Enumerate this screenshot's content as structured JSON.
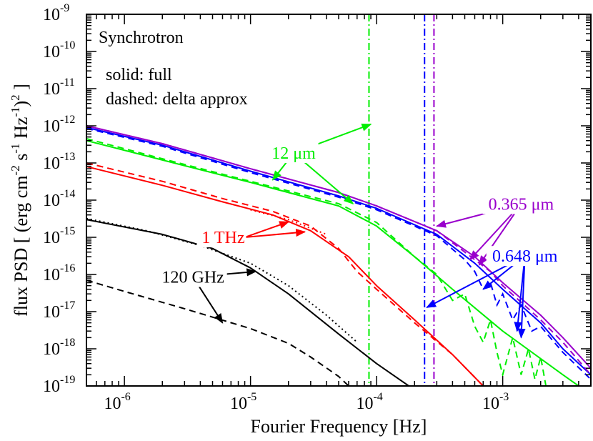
{
  "chart_data": {
    "type": "line",
    "xscale": "log",
    "yscale": "log",
    "xlim": [
      5e-07,
      0.005
    ],
    "ylim": [
      1e-19,
      1e-09
    ],
    "xlabel": "Fourier Frequency [Hz]",
    "ylabel": {
      "prefix": "flux PSD [ (erg cm",
      "exp1": "-2",
      "mid1": " s",
      "exp2": "-1",
      "mid2": " Hz",
      "exp3": "-1",
      "close": ")",
      "exp4": "2",
      "suffix": " ]"
    },
    "xticks": [
      {
        "value": 1e-06,
        "label": "10",
        "exp": "-6"
      },
      {
        "value": 1e-05,
        "label": "10",
        "exp": "-5"
      },
      {
        "value": 0.0001,
        "label": "10",
        "exp": "-4"
      },
      {
        "value": 0.001,
        "label": "10",
        "exp": "-3"
      }
    ],
    "yticks": [
      {
        "value": 1e-19,
        "label": "10",
        "exp": "-19"
      },
      {
        "value": 1e-18,
        "label": "10",
        "exp": "-18"
      },
      {
        "value": 1e-17,
        "label": "10",
        "exp": "-17"
      },
      {
        "value": 1e-16,
        "label": "10",
        "exp": "-16"
      },
      {
        "value": 1e-15,
        "label": "10",
        "exp": "-15"
      },
      {
        "value": 1e-14,
        "label": "10",
        "exp": "-14"
      },
      {
        "value": 1e-13,
        "label": "10",
        "exp": "-13"
      },
      {
        "value": 1e-12,
        "label": "10",
        "exp": "-12"
      },
      {
        "value": 1e-11,
        "label": "10",
        "exp": "-11"
      },
      {
        "value": 1e-10,
        "label": "10",
        "exp": "-10"
      },
      {
        "value": 1e-09,
        "label": "10",
        "exp": "-9"
      }
    ],
    "annotations": {
      "title": "Synchrotron",
      "legend_solid": "solid:  full",
      "legend_dashed": "dashed:  delta approx"
    },
    "series": [
      {
        "name": "120 GHz",
        "color": "#000000",
        "full": [
          [
            5e-07,
            3e-15
          ],
          [
            2e-06,
            1.2e-15
          ],
          [
            5e-06,
            5e-16
          ],
          [
            1e-05,
            1.5e-16
          ],
          [
            2e-05,
            3e-17
          ],
          [
            5e-05,
            2.5e-18
          ],
          [
            0.0001,
            4e-19
          ],
          [
            0.00018,
            1e-19
          ]
        ],
        "delta": [
          [
            5e-07,
            7e-17
          ],
          [
            1e-06,
            3.5e-17
          ],
          [
            3e-06,
            1.2e-17
          ],
          [
            1e-05,
            3.5e-18
          ],
          [
            2e-05,
            1.4e-18
          ],
          [
            3e-05,
            6e-19
          ],
          [
            5e-05,
            1.8e-19
          ],
          [
            6e-05,
            1e-19
          ]
        ],
        "dotted": [
          [
            5e-07,
            3.2e-15
          ],
          [
            1.5e-06,
            1.5e-15
          ],
          [
            4e-06,
            6e-16
          ],
          [
            1e-05,
            2e-16
          ],
          [
            2e-05,
            5e-17
          ],
          [
            4e-05,
            8e-18
          ],
          [
            7e-05,
            1.5e-18
          ]
        ]
      },
      {
        "name": "1 THz",
        "color": "#ff0000",
        "full": [
          [
            5e-07,
            8e-14
          ],
          [
            2e-06,
            2.5e-14
          ],
          [
            6e-06,
            9e-15
          ],
          [
            1.5e-05,
            4e-15
          ],
          [
            3e-05,
            1.5e-15
          ],
          [
            6e-05,
            3e-16
          ],
          [
            0.0001,
            5e-17
          ],
          [
            0.0002,
            6e-18
          ],
          [
            0.0004,
            7e-19
          ],
          [
            0.0007,
            1e-19
          ]
        ],
        "delta": [
          [
            5e-07,
            1e-13
          ],
          [
            2e-06,
            3.2e-14
          ],
          [
            6e-06,
            1.1e-14
          ],
          [
            1.5e-05,
            5e-15
          ],
          [
            3e-05,
            2e-15
          ],
          [
            5e-05,
            5e-16
          ],
          [
            7e-05,
            1.2e-16
          ],
          [
            0.0001,
            4e-17
          ],
          [
            0.0002,
            5e-18
          ],
          [
            0.0004,
            7e-19
          ],
          [
            0.0007,
            1e-19
          ]
        ],
        "dotted": [
          [
            1e-05,
            5.5e-15
          ],
          [
            2e-05,
            3e-15
          ],
          [
            4e-05,
            1.2e-15
          ]
        ]
      },
      {
        "name": "12 μm",
        "color": "#00ee00",
        "full": [
          [
            5e-07,
            4e-13
          ],
          [
            2e-06,
            1.2e-13
          ],
          [
            1e-05,
            3e-14
          ],
          [
            5e-05,
            7e-15
          ],
          [
            0.0001,
            2e-15
          ],
          [
            0.0002,
            3e-16
          ],
          [
            0.0004,
            4e-17
          ],
          [
            0.001,
            3e-18
          ],
          [
            0.003,
            2e-19
          ],
          [
            0.004,
            1e-19
          ]
        ],
        "delta": [
          [
            5e-07,
            4.5e-13
          ],
          [
            2e-06,
            1.3e-13
          ],
          [
            1e-05,
            3.2e-14
          ],
          [
            5e-05,
            8e-15
          ],
          [
            0.0001,
            2.5e-15
          ],
          [
            0.0002,
            3e-16
          ],
          [
            0.0003,
            1e-16
          ],
          [
            0.0004,
            2e-17
          ],
          [
            0.0005,
            3e-17
          ],
          [
            0.0006,
            4e-18
          ],
          [
            0.0007,
            1.5e-18
          ],
          [
            0.0008,
            6e-18
          ],
          [
            0.0009,
            8e-19
          ],
          [
            0.001,
            2e-19
          ],
          [
            0.0012,
            2e-18
          ],
          [
            0.0014,
            2e-19
          ],
          [
            0.0016,
            1e-18
          ],
          [
            0.0018,
            1.5e-19
          ],
          [
            0.002,
            6e-19
          ],
          [
            0.0022,
            1e-19
          ]
        ]
      },
      {
        "name": "0.648 μm",
        "color": "#0000ff",
        "full": [
          [
            5e-07,
            9e-13
          ],
          [
            2e-06,
            3e-13
          ],
          [
            1e-05,
            6e-14
          ],
          [
            5e-05,
            1.3e-14
          ],
          [
            0.0001,
            6e-15
          ],
          [
            0.0003,
            1.2e-15
          ],
          [
            0.0006,
            2e-16
          ],
          [
            0.001,
            4e-17
          ],
          [
            0.002,
            5e-18
          ],
          [
            0.003,
            1e-18
          ],
          [
            0.005,
            2e-19
          ]
        ],
        "delta": [
          [
            5e-07,
            8.5e-13
          ],
          [
            2e-06,
            2.8e-13
          ],
          [
            1e-05,
            5.5e-14
          ],
          [
            5e-05,
            1.2e-14
          ],
          [
            0.0001,
            5.5e-15
          ],
          [
            0.0003,
            1.1e-15
          ],
          [
            0.0005,
            2.5e-16
          ],
          [
            0.0006,
            1.2e-16
          ],
          [
            0.0007,
            4e-17
          ],
          [
            0.0008,
            6e-17
          ],
          [
            0.0009,
            1.5e-17
          ],
          [
            0.001,
            3e-17
          ],
          [
            0.0012,
            6e-18
          ],
          [
            0.0014,
            1.5e-17
          ],
          [
            0.0017,
            3e-18
          ],
          [
            0.002,
            4e-18
          ],
          [
            0.003,
            8e-19
          ],
          [
            0.005,
            1.5e-19
          ]
        ]
      },
      {
        "name": "0.365 μm",
        "color": "#9900cc",
        "full": [
          [
            5e-07,
            1e-12
          ],
          [
            2e-06,
            3.3e-13
          ],
          [
            1e-05,
            7e-14
          ],
          [
            5e-05,
            1.6e-14
          ],
          [
            0.0001,
            7e-15
          ],
          [
            0.0003,
            1.5e-15
          ],
          [
            0.0006,
            3e-16
          ],
          [
            0.001,
            6e-17
          ],
          [
            0.002,
            8e-18
          ],
          [
            0.003,
            2e-18
          ],
          [
            0.005,
            3e-19
          ]
        ],
        "delta": [
          [
            5e-07,
            1e-12
          ],
          [
            2e-06,
            3.3e-13
          ],
          [
            1e-05,
            7e-14
          ],
          [
            5e-05,
            1.6e-14
          ],
          [
            0.0001,
            7e-15
          ],
          [
            0.0003,
            1.5e-15
          ],
          [
            0.0006,
            2.5e-16
          ],
          [
            0.0008,
            1.2e-16
          ],
          [
            0.001,
            5e-17
          ],
          [
            0.002,
            6e-18
          ],
          [
            0.003,
            1.5e-18
          ],
          [
            0.005,
            2e-19
          ]
        ]
      }
    ],
    "vlines": [
      {
        "x": 8.7e-05,
        "color": "#00ee00",
        "style": "dash-dot"
      },
      {
        "x": 0.00024,
        "color": "#0000ff",
        "style": "dash-dot"
      },
      {
        "x": 0.000285,
        "color": "#9900cc",
        "style": "dash-dot"
      }
    ],
    "labels": [
      {
        "text": "12 μm",
        "color": "#00ee00",
        "x": 2.2e-05,
        "y": 1.3e-13,
        "anchor": "middle",
        "arrows": [
          [
            9e-05,
            1.1e-12
          ],
          [
            1.5e-05,
            3.5e-14
          ],
          [
            6.5e-05,
            8e-15
          ]
        ]
      },
      {
        "text": "1 THz",
        "color": "#ff0000",
        "x": 9e-06,
        "y": 7e-16,
        "anchor": "end",
        "arrows": [
          [
            2e-05,
            2.6e-15
          ],
          [
            2.7e-05,
            1.4e-15
          ]
        ]
      },
      {
        "text": "120 GHz",
        "color": "#000000",
        "x": 3.5e-06,
        "y": 6e-17,
        "anchor": "middle",
        "arrows": [
          [
            1.1e-05,
            1.2e-16
          ],
          [
            6e-06,
            5e-18
          ]
        ]
      },
      {
        "text": "0.365 μm",
        "color": "#9900cc",
        "x": 0.0014,
        "y": 5.5e-15,
        "anchor": "middle",
        "arrows": [
          [
            0.0003,
            2e-15
          ],
          [
            0.00055,
            2.5e-16
          ],
          [
            0.00065,
            1.8e-16
          ]
        ]
      },
      {
        "text": "0.648 μm",
        "color": "#0000ff",
        "x": 0.0015,
        "y": 2.2e-16,
        "anchor": "middle",
        "arrows": [
          [
            0.00025,
            1.3e-17
          ],
          [
            0.0007,
            4e-17
          ],
          [
            0.0013,
            3e-18
          ],
          [
            0.0014,
            2e-18
          ]
        ]
      }
    ]
  }
}
